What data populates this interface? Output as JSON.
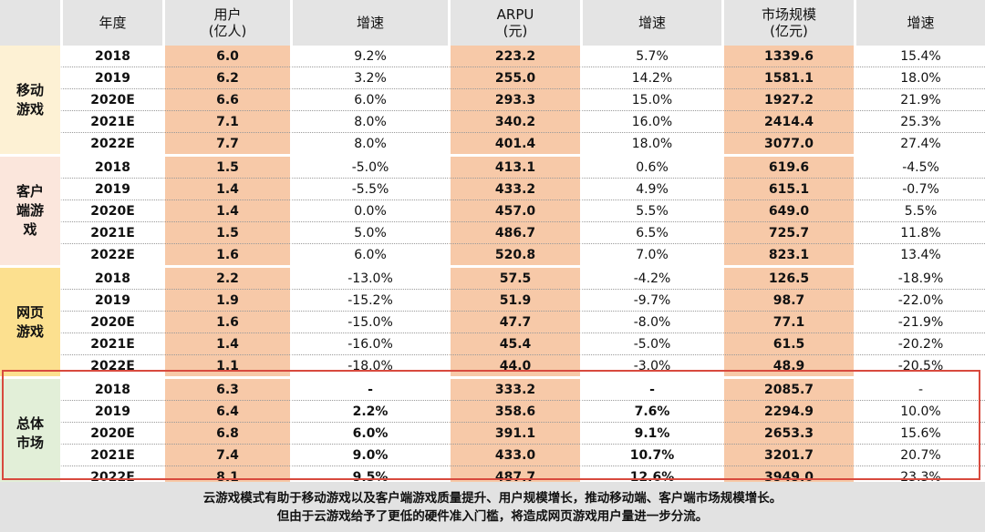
{
  "header": {
    "year": "年度",
    "users": [
      "用户",
      "(亿人)"
    ],
    "growth1": "增速",
    "arpu": [
      "ARPU",
      "(元)"
    ],
    "growth2": "增速",
    "market": [
      "市场规模",
      "(亿元)"
    ],
    "growth3": "增速"
  },
  "colors": {
    "header_bg": "#e4e4e4",
    "value_column_bg": "#f7c9a8",
    "highlight_border": "#d84a3e",
    "footer_bg": "#e2e2e2"
  },
  "groups": [
    {
      "name": [
        "移动",
        "游戏"
      ],
      "color": "#fdf1d4",
      "rows": [
        [
          "2018",
          "6.0",
          "9.2%",
          "223.2",
          "5.7%",
          "1339.6",
          "15.4%"
        ],
        [
          "2019",
          "6.2",
          "3.2%",
          "255.0",
          "14.2%",
          "1581.1",
          "18.0%"
        ],
        [
          "2020E",
          "6.6",
          "6.0%",
          "293.3",
          "15.0%",
          "1927.2",
          "21.9%"
        ],
        [
          "2021E",
          "7.1",
          "8.0%",
          "340.2",
          "16.0%",
          "2414.4",
          "25.3%"
        ],
        [
          "2022E",
          "7.7",
          "8.0%",
          "401.4",
          "18.0%",
          "3077.0",
          "27.4%"
        ]
      ]
    },
    {
      "name": [
        "客户",
        "端游",
        "戏"
      ],
      "color": "#fbe6dc",
      "rows": [
        [
          "2018",
          "1.5",
          "-5.0%",
          "413.1",
          "0.6%",
          "619.6",
          "-4.5%"
        ],
        [
          "2019",
          "1.4",
          "-5.5%",
          "433.2",
          "4.9%",
          "615.1",
          "-0.7%"
        ],
        [
          "2020E",
          "1.4",
          "0.0%",
          "457.0",
          "5.5%",
          "649.0",
          "5.5%"
        ],
        [
          "2021E",
          "1.5",
          "5.0%",
          "486.7",
          "6.5%",
          "725.7",
          "11.8%"
        ],
        [
          "2022E",
          "1.6",
          "6.0%",
          "520.8",
          "7.0%",
          "823.1",
          "13.4%"
        ]
      ]
    },
    {
      "name": [
        "网页",
        "游戏"
      ],
      "color": "#fce08f",
      "rows": [
        [
          "2018",
          "2.2",
          "-13.0%",
          "57.5",
          "-4.2%",
          "126.5",
          "-18.9%"
        ],
        [
          "2019",
          "1.9",
          "-15.2%",
          "51.9",
          "-9.7%",
          "98.7",
          "-22.0%"
        ],
        [
          "2020E",
          "1.6",
          "-15.0%",
          "47.7",
          "-8.0%",
          "77.1",
          "-21.9%"
        ],
        [
          "2021E",
          "1.4",
          "-16.0%",
          "45.4",
          "-5.0%",
          "61.5",
          "-20.2%"
        ],
        [
          "2022E",
          "1.1",
          "-18.0%",
          "44.0",
          "-3.0%",
          "48.9",
          "-20.5%"
        ]
      ]
    },
    {
      "name": [
        "总体",
        "市场"
      ],
      "color": "#e2efd8",
      "bold_growth": true,
      "rows": [
        [
          "2018",
          "6.3",
          "-",
          "333.2",
          "-",
          "2085.7",
          "-"
        ],
        [
          "2019",
          "6.4",
          "2.2%",
          "358.6",
          "7.6%",
          "2294.9",
          "10.0%"
        ],
        [
          "2020E",
          "6.8",
          "6.0%",
          "391.1",
          "9.1%",
          "2653.3",
          "15.6%"
        ],
        [
          "2021E",
          "7.4",
          "9.0%",
          "433.0",
          "10.7%",
          "3201.7",
          "20.7%"
        ],
        [
          "2022E",
          "8.1",
          "9.5%",
          "487.7",
          "12.6%",
          "3949.0",
          "23.3%"
        ]
      ]
    }
  ],
  "footer": [
    "云游戏模式有助于移动游戏以及客户端游戏质量提升、用户规模增长，推动移动端、客户端市场规模增长。",
    "但由于云游戏给予了更低的硬件准入门槛，将造成网页游戏用户量进一步分流。"
  ]
}
